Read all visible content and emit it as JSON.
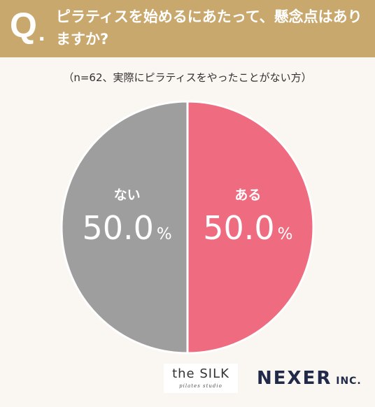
{
  "header": {
    "q_mark": "Q",
    "q_dot": ".",
    "question": "ピラティスを始めるにあたって、懸念点はありますか?",
    "background_color": "#c9a86e"
  },
  "note": "（n=62、実際にピラティスをやったことがない方）",
  "chart_data": {
    "type": "pie",
    "title": "ピラティスを始めるにあたって、懸念点はありますか?",
    "subtitle": "（n=62、実際にピラティスをやったことがない方）",
    "start_angle_deg": 0,
    "direction": "clockwise",
    "slices": [
      {
        "label": "ある",
        "value": 50.0,
        "display": "50.0",
        "unit": "%",
        "color": "#ef6c80"
      },
      {
        "label": "ない",
        "value": 50.0,
        "display": "50.0",
        "unit": "%",
        "color": "#9e9e9e"
      }
    ]
  },
  "footer": {
    "silk_main": "the SILK",
    "silk_sub": "pilates studio",
    "nexer_main": "NEXER",
    "nexer_sub": " INC."
  }
}
